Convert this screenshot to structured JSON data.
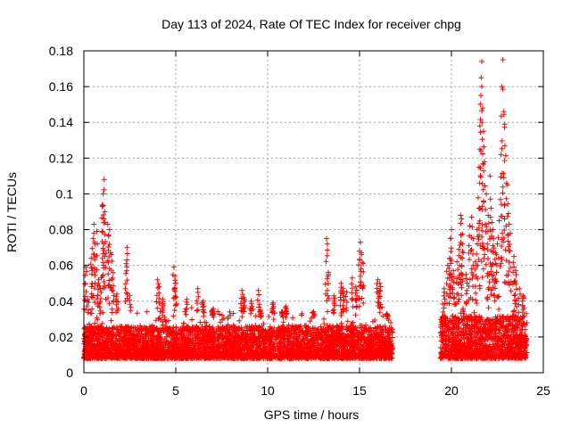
{
  "chart_data": {
    "type": "scatter",
    "title": "Day 113 of 2024, Rate Of TEC Index for receiver chpg",
    "xlabel": "GPS time / hours",
    "ylabel": "ROTI / TECUs",
    "xlim": [
      0,
      25
    ],
    "ylim": [
      0,
      0.18
    ],
    "xticks": [
      0,
      5,
      10,
      15,
      20,
      25
    ],
    "yticks": [
      0,
      0.02,
      0.04,
      0.06,
      0.08,
      0.1,
      0.12,
      0.14,
      0.16,
      0.18
    ],
    "xtick_labels": [
      "0",
      "5",
      "10",
      "15",
      "20",
      "25"
    ],
    "ytick_labels": [
      "0",
      "0.02",
      "0.04",
      "0.06",
      "0.08",
      "0.1",
      "0.12",
      "0.14",
      "0.16",
      "0.18"
    ],
    "grid": true,
    "marker": "+",
    "series": [
      {
        "name": "ROTI",
        "color": "#ff0000",
        "segments": [
          {
            "x_start": 0.0,
            "x_end": 16.8,
            "base_low": 0.008,
            "base_high": 0.026
          },
          {
            "x_start": 19.4,
            "x_end": 24.1,
            "base_low": 0.008,
            "base_high": 0.032
          }
        ],
        "peaks": [
          {
            "x": 0.1,
            "y": 0.059
          },
          {
            "x": 0.2,
            "y": 0.041
          },
          {
            "x": 0.4,
            "y": 0.064
          },
          {
            "x": 0.5,
            "y": 0.075
          },
          {
            "x": 0.55,
            "y": 0.083
          },
          {
            "x": 0.6,
            "y": 0.072
          },
          {
            "x": 0.7,
            "y": 0.079
          },
          {
            "x": 0.8,
            "y": 0.052
          },
          {
            "x": 0.9,
            "y": 0.047
          },
          {
            "x": 1.0,
            "y": 0.093
          },
          {
            "x": 1.05,
            "y": 0.1
          },
          {
            "x": 1.1,
            "y": 0.108
          },
          {
            "x": 1.15,
            "y": 0.09
          },
          {
            "x": 1.3,
            "y": 0.083
          },
          {
            "x": 1.35,
            "y": 0.077
          },
          {
            "x": 1.4,
            "y": 0.08
          },
          {
            "x": 1.5,
            "y": 0.066
          },
          {
            "x": 1.6,
            "y": 0.056
          },
          {
            "x": 1.8,
            "y": 0.044
          },
          {
            "x": 2.3,
            "y": 0.061
          },
          {
            "x": 2.35,
            "y": 0.07
          },
          {
            "x": 2.5,
            "y": 0.043
          },
          {
            "x": 4.0,
            "y": 0.052
          },
          {
            "x": 4.1,
            "y": 0.048
          },
          {
            "x": 4.3,
            "y": 0.041
          },
          {
            "x": 4.9,
            "y": 0.059
          },
          {
            "x": 4.95,
            "y": 0.054
          },
          {
            "x": 5.0,
            "y": 0.05
          },
          {
            "x": 5.6,
            "y": 0.041
          },
          {
            "x": 6.2,
            "y": 0.047
          },
          {
            "x": 6.5,
            "y": 0.04
          },
          {
            "x": 7.0,
            "y": 0.035
          },
          {
            "x": 8.6,
            "y": 0.046
          },
          {
            "x": 8.7,
            "y": 0.042
          },
          {
            "x": 9.1,
            "y": 0.04
          },
          {
            "x": 9.5,
            "y": 0.046
          },
          {
            "x": 9.6,
            "y": 0.035
          },
          {
            "x": 10.3,
            "y": 0.039
          },
          {
            "x": 10.8,
            "y": 0.034
          },
          {
            "x": 11.0,
            "y": 0.037
          },
          {
            "x": 12.5,
            "y": 0.034
          },
          {
            "x": 13.2,
            "y": 0.075
          },
          {
            "x": 13.25,
            "y": 0.072
          },
          {
            "x": 13.3,
            "y": 0.055
          },
          {
            "x": 13.6,
            "y": 0.043
          },
          {
            "x": 14.0,
            "y": 0.05
          },
          {
            "x": 14.1,
            "y": 0.047
          },
          {
            "x": 14.3,
            "y": 0.045
          },
          {
            "x": 14.6,
            "y": 0.053
          },
          {
            "x": 14.8,
            "y": 0.048
          },
          {
            "x": 15.0,
            "y": 0.068
          },
          {
            "x": 15.05,
            "y": 0.073
          },
          {
            "x": 15.1,
            "y": 0.066
          },
          {
            "x": 15.2,
            "y": 0.061
          },
          {
            "x": 16.0,
            "y": 0.052
          },
          {
            "x": 16.1,
            "y": 0.05
          },
          {
            "x": 16.5,
            "y": 0.033
          },
          {
            "x": 19.6,
            "y": 0.047
          },
          {
            "x": 19.8,
            "y": 0.06
          },
          {
            "x": 19.9,
            "y": 0.064
          },
          {
            "x": 19.95,
            "y": 0.075
          },
          {
            "x": 20.0,
            "y": 0.08
          },
          {
            "x": 20.1,
            "y": 0.057
          },
          {
            "x": 20.3,
            "y": 0.062
          },
          {
            "x": 20.4,
            "y": 0.069
          },
          {
            "x": 20.5,
            "y": 0.088
          },
          {
            "x": 20.55,
            "y": 0.086
          },
          {
            "x": 20.6,
            "y": 0.072
          },
          {
            "x": 20.8,
            "y": 0.055
          },
          {
            "x": 21.0,
            "y": 0.082
          },
          {
            "x": 21.1,
            "y": 0.087
          },
          {
            "x": 21.2,
            "y": 0.075
          },
          {
            "x": 21.3,
            "y": 0.062
          },
          {
            "x": 21.4,
            "y": 0.08
          },
          {
            "x": 21.5,
            "y": 0.115
          },
          {
            "x": 21.55,
            "y": 0.138
          },
          {
            "x": 21.6,
            "y": 0.155
          },
          {
            "x": 21.62,
            "y": 0.165
          },
          {
            "x": 21.65,
            "y": 0.174
          },
          {
            "x": 21.7,
            "y": 0.148
          },
          {
            "x": 21.75,
            "y": 0.135
          },
          {
            "x": 21.8,
            "y": 0.118
          },
          {
            "x": 21.9,
            "y": 0.1
          },
          {
            "x": 22.0,
            "y": 0.088
          },
          {
            "x": 22.1,
            "y": 0.11
          },
          {
            "x": 22.15,
            "y": 0.092
          },
          {
            "x": 22.2,
            "y": 0.084
          },
          {
            "x": 22.3,
            "y": 0.075
          },
          {
            "x": 22.4,
            "y": 0.067
          },
          {
            "x": 22.5,
            "y": 0.072
          },
          {
            "x": 22.6,
            "y": 0.085
          },
          {
            "x": 22.7,
            "y": 0.122
          },
          {
            "x": 22.75,
            "y": 0.16
          },
          {
            "x": 22.8,
            "y": 0.175
          },
          {
            "x": 22.85,
            "y": 0.146
          },
          {
            "x": 22.9,
            "y": 0.139
          },
          {
            "x": 23.0,
            "y": 0.106
          },
          {
            "x": 23.05,
            "y": 0.105
          },
          {
            "x": 23.1,
            "y": 0.089
          },
          {
            "x": 23.2,
            "y": 0.078
          },
          {
            "x": 23.4,
            "y": 0.065
          },
          {
            "x": 23.5,
            "y": 0.057
          },
          {
            "x": 23.7,
            "y": 0.047
          },
          {
            "x": 23.9,
            "y": 0.043
          }
        ]
      }
    ]
  }
}
